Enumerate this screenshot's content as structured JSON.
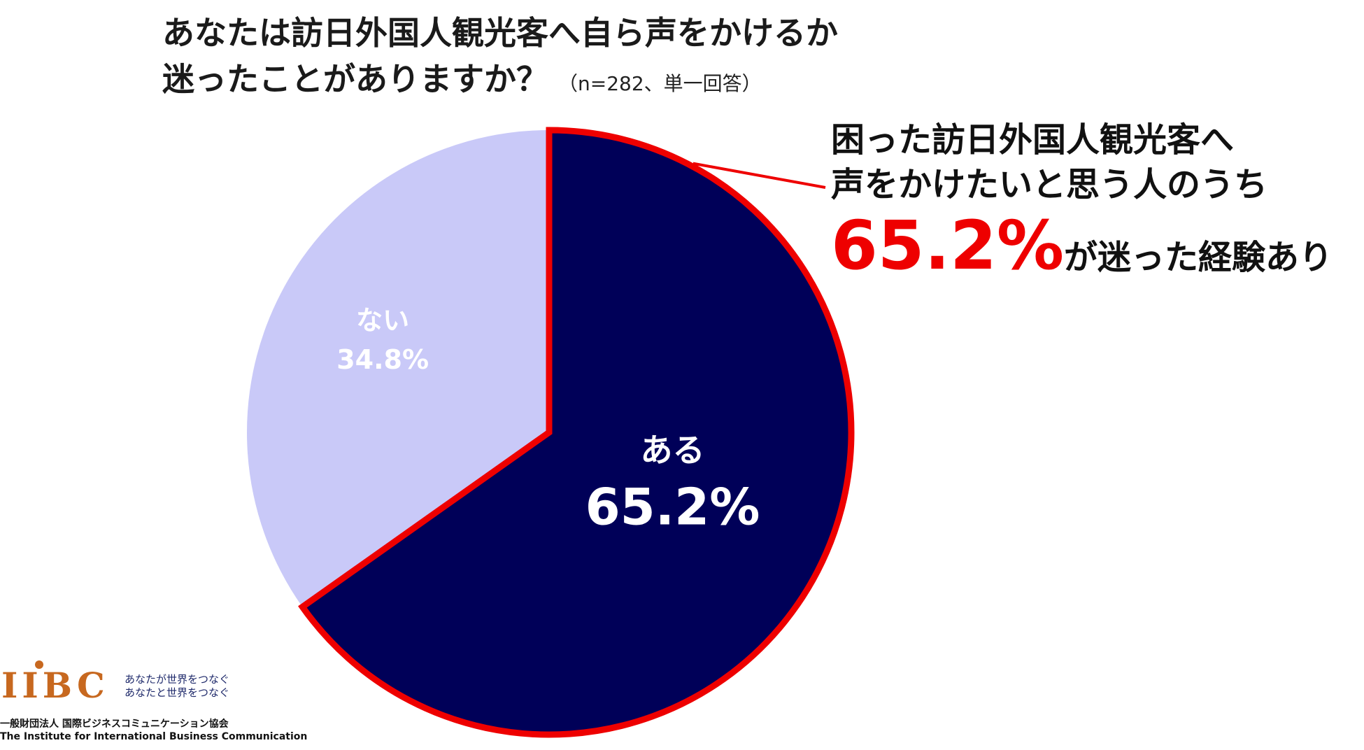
{
  "title": {
    "line1": "あなたは訪日外国人観光客へ自ら声をかけるか",
    "line2": "迷ったことがありますか？",
    "note": "（n=282、単一回答）"
  },
  "chart_data": {
    "type": "pie",
    "slices": [
      {
        "label": "ある",
        "value": 65.2,
        "value_label": "65.2%",
        "color": "#000058",
        "highlight": true
      },
      {
        "label": "ない",
        "value": 34.8,
        "value_label": "34.8%",
        "color": "#c9c9f8"
      }
    ],
    "start_angle": "12 o'clock, clockwise",
    "highlight_border_color": "#ee0000"
  },
  "callout": {
    "line1": "困った訪日外国人観光客へ",
    "line2": "声をかけたいと思う人のうち",
    "value": "65.2%",
    "tail": "が迷った経験あり",
    "leader_color": "#ee0000"
  },
  "logo": {
    "mark": "IIBC",
    "tagline1": "あなたが世界をつなぐ",
    "tagline2": "あなたと世界をつなぐ",
    "org_ja": "一般財団法人 国際ビジネスコミュニケーション協会",
    "org_en": "The Institute for International Business Communication"
  }
}
